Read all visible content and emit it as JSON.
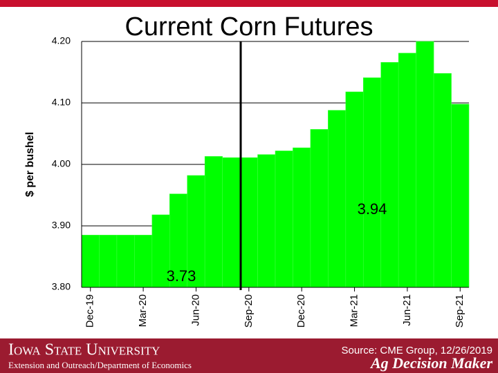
{
  "chart_data": {
    "type": "step-area",
    "title": "Current Corn Futures",
    "y_label": "$ per bushel",
    "categories": [
      "Dec-19",
      null,
      null,
      "Mar-20",
      null,
      null,
      "Jun-20",
      null,
      null,
      "Sep-20",
      null,
      null,
      "Dec-20",
      null,
      null,
      "Mar-21",
      null,
      null,
      "Jun-21",
      null,
      null,
      "Sep-21"
    ],
    "values": [
      3.885,
      3.885,
      3.885,
      3.885,
      3.918,
      3.952,
      3.982,
      4.013,
      4.011,
      4.011,
      4.016,
      4.022,
      4.027,
      4.057,
      4.088,
      4.118,
      4.141,
      4.166,
      4.181,
      4.2,
      4.148,
      4.098
    ],
    "color": "#00ff00",
    "ylim": [
      3.8,
      4.2
    ],
    "yticks": [
      {
        "value": 3.8,
        "label": "3.80"
      },
      {
        "value": 3.9,
        "label": "3.90"
      },
      {
        "value": 4.0,
        "label": "4.00"
      },
      {
        "value": 4.1,
        "label": "4.10"
      },
      {
        "value": 4.2,
        "label": "4.20"
      }
    ],
    "grid": true,
    "annotations": [
      "3.94",
      "3.73"
    ]
  },
  "footer": {
    "university": "Iowa State University",
    "department": "Extension and Outreach/Department of Economics",
    "source": "Source: CME Group, 12/26/2019",
    "brand": "Ag Decision Maker"
  }
}
